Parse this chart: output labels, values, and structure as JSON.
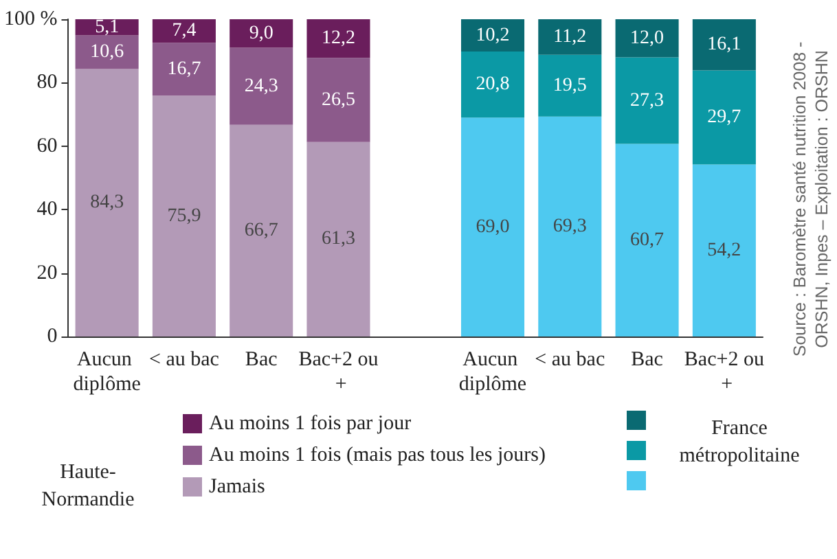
{
  "chart_data": {
    "type": "bar",
    "stacked": true,
    "legend": "bottom",
    "categories": [
      "Aucun diplôme",
      "< au bac",
      "Bac",
      "Bac+2 ou +",
      null,
      "Aucun diplôme",
      "< au bac",
      "Bac",
      "Bac+2 ou +"
    ],
    "ylim": [
      0,
      100
    ],
    "yticks": [
      0,
      20,
      40,
      60,
      80,
      {
        "value": 100,
        "label": "100 %"
      }
    ],
    "series": [
      {
        "name": "Jamais",
        "colors": [
          "#b39ab7",
          "#b39ab7",
          "#b39ab7",
          "#b39ab7",
          null,
          "#4ec9f0",
          "#4ec9f0",
          "#4ec9f0",
          "#4ec9f0"
        ],
        "values": [
          84.3,
          75.9,
          66.7,
          61.3,
          null,
          69.0,
          69.3,
          60.7,
          54.2
        ],
        "value_labels": [
          "84,3",
          "75,9",
          "66,7",
          "61,3",
          null,
          "69,0",
          "69,3",
          "60,7",
          "54,2"
        ]
      },
      {
        "name": "Au moins 1 fois (mais pas tous les jours)",
        "colors": [
          "#8c5a8b",
          "#8c5a8b",
          "#8c5a8b",
          "#8c5a8b",
          null,
          "#0b99a5",
          "#0b99a5",
          "#0b99a5",
          "#0b99a5"
        ],
        "values": [
          10.6,
          16.7,
          24.3,
          26.5,
          null,
          20.8,
          19.5,
          27.3,
          29.7
        ],
        "value_labels": [
          "10,6",
          "16,7",
          "24,3",
          "26,5",
          null,
          "20,8",
          "19,5",
          "27,3",
          "29,7"
        ]
      },
      {
        "name": "Au moins 1 fois par jour",
        "colors": [
          "#6a1e5c",
          "#6a1e5c",
          "#6a1e5c",
          "#6a1e5c",
          null,
          "#0a6a72",
          "#0a6a72",
          "#0a6a72",
          "#0a6a72"
        ],
        "values": [
          5.1,
          7.4,
          9.0,
          12.2,
          null,
          10.2,
          11.2,
          12.0,
          16.1
        ],
        "value_labels": [
          "5,1",
          "7,4",
          "9,0",
          "12,2",
          null,
          "10,2",
          "11,2",
          "12,0",
          "16,1"
        ]
      }
    ],
    "annotations": [
      "Haute-Normandie",
      "France métropolitaine",
      "Source : Baromètre santé nutrition 2008 - ORSHN, Inpes – Exploitation : ORSHN"
    ]
  }
}
